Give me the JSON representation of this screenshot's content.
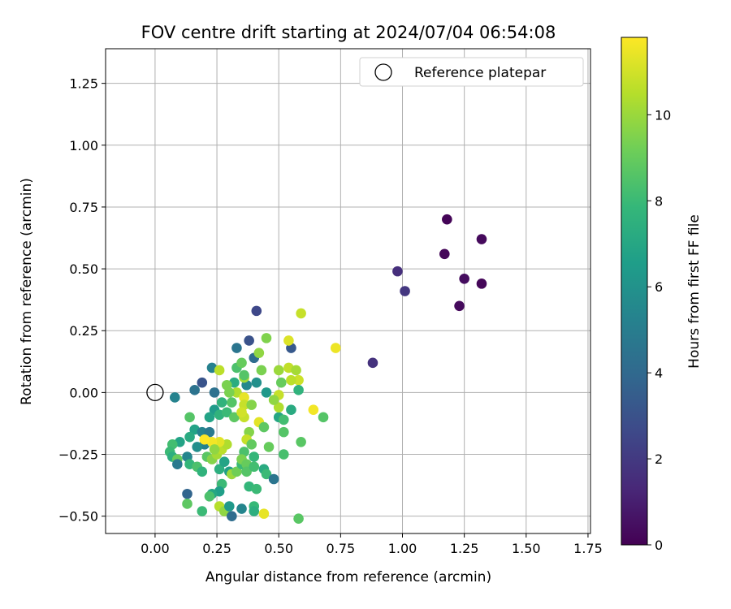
{
  "chart_data": {
    "type": "scatter",
    "title": "FOV centre drift starting at 2024/07/04 06:54:08",
    "xlabel": "Angular distance from reference (arcmin)",
    "ylabel": "Rotation from reference (arcmin)",
    "xlim": [
      -0.2,
      1.76
    ],
    "ylim": [
      -0.57,
      1.39
    ],
    "xticks": [
      0.0,
      0.25,
      0.5,
      0.75,
      1.0,
      1.25,
      1.5,
      1.75
    ],
    "xtick_labels": [
      "0.00",
      "0.25",
      "0.50",
      "0.75",
      "1.00",
      "1.25",
      "1.50",
      "1.75"
    ],
    "yticks": [
      -0.5,
      -0.25,
      0.0,
      0.25,
      0.5,
      0.75,
      1.0,
      1.25
    ],
    "ytick_labels": [
      "−0.50",
      "−0.25",
      "0.00",
      "0.25",
      "0.50",
      "0.75",
      "1.00",
      "1.25"
    ],
    "grid": true,
    "legend": {
      "position": "top-right",
      "label": "Reference platepar"
    },
    "reference_point": {
      "x": 0.0,
      "y": 0.0
    },
    "colorbar": {
      "label": "Hours from first FF file",
      "colormap": "viridis",
      "range": [
        0,
        11.8
      ],
      "ticks": [
        0,
        2,
        4,
        6,
        8,
        10
      ],
      "tick_labels": [
        "0",
        "2",
        "4",
        "6",
        "8",
        "10"
      ]
    },
    "colormap_stops": [
      "#440154",
      "#482878",
      "#3e4989",
      "#31688e",
      "#26828e",
      "#1f9e89",
      "#35b779",
      "#6ece58",
      "#b5de2b",
      "#fde725"
    ],
    "points": [
      [
        1.18,
        0.7,
        0.1
      ],
      [
        1.32,
        0.62,
        0.3
      ],
      [
        1.17,
        0.56,
        0.2
      ],
      [
        1.25,
        0.46,
        0.4
      ],
      [
        1.32,
        0.44,
        0.2
      ],
      [
        1.23,
        0.35,
        0.3
      ],
      [
        0.98,
        0.49,
        1.6
      ],
      [
        1.01,
        0.41,
        1.9
      ],
      [
        0.88,
        0.12,
        1.7
      ],
      [
        0.41,
        0.33,
        2.6
      ],
      [
        0.38,
        0.21,
        3.0
      ],
      [
        0.55,
        0.18,
        3.3
      ],
      [
        0.33,
        0.18,
        4.6
      ],
      [
        0.4,
        0.14,
        4.2
      ],
      [
        0.19,
        0.04,
        3.1
      ],
      [
        0.23,
        0.1,
        5.2
      ],
      [
        0.16,
        0.01,
        4.5
      ],
      [
        0.24,
        0.0,
        4.4
      ],
      [
        0.08,
        -0.02,
        5.3
      ],
      [
        0.37,
        0.03,
        5.5
      ],
      [
        0.41,
        0.04,
        5.9
      ],
      [
        0.45,
        0.0,
        6.3
      ],
      [
        0.32,
        0.04,
        7.3
      ],
      [
        0.29,
        0.03,
        9.4
      ],
      [
        0.26,
        0.09,
        10.6
      ],
      [
        0.33,
        0.1,
        8.4
      ],
      [
        0.36,
        0.06,
        10.2
      ],
      [
        0.43,
        0.09,
        9.4
      ],
      [
        0.5,
        0.09,
        10.0
      ],
      [
        0.54,
        0.1,
        10.7
      ],
      [
        0.57,
        0.09,
        10.2
      ],
      [
        0.58,
        0.05,
        10.9
      ],
      [
        0.55,
        0.05,
        10.6
      ],
      [
        0.51,
        0.04,
        9.0
      ],
      [
        0.58,
        0.01,
        7.6
      ],
      [
        0.45,
        0.22,
        9.5
      ],
      [
        0.42,
        0.16,
        9.8
      ],
      [
        0.35,
        0.12,
        9.0
      ],
      [
        0.36,
        0.07,
        8.6
      ],
      [
        0.59,
        0.32,
        10.8
      ],
      [
        0.54,
        0.21,
        11.2
      ],
      [
        0.73,
        0.18,
        11.5
      ],
      [
        0.64,
        -0.07,
        11.6
      ],
      [
        0.68,
        -0.1,
        8.6
      ],
      [
        0.55,
        -0.07,
        7.2
      ],
      [
        0.5,
        -0.1,
        7.0
      ],
      [
        0.52,
        -0.11,
        8.2
      ],
      [
        0.5,
        -0.06,
        10.4
      ],
      [
        0.5,
        -0.01,
        10.8
      ],
      [
        0.48,
        -0.03,
        9.8
      ],
      [
        0.33,
        0.0,
        10.4
      ],
      [
        0.3,
        0.0,
        9.4
      ],
      [
        0.36,
        -0.02,
        11.4
      ],
      [
        0.36,
        -0.05,
        10.8
      ],
      [
        0.39,
        -0.05,
        9.6
      ],
      [
        0.31,
        -0.04,
        8.6
      ],
      [
        0.27,
        -0.04,
        7.6
      ],
      [
        0.24,
        -0.07,
        6.4
      ],
      [
        0.22,
        -0.1,
        6.8
      ],
      [
        0.26,
        -0.09,
        7.6
      ],
      [
        0.29,
        -0.08,
        8.0
      ],
      [
        0.32,
        -0.1,
        8.8
      ],
      [
        0.36,
        -0.1,
        10.8
      ],
      [
        0.35,
        -0.08,
        11.0
      ],
      [
        0.42,
        -0.12,
        11.3
      ],
      [
        0.44,
        -0.14,
        8.8
      ],
      [
        0.38,
        -0.16,
        9.6
      ],
      [
        0.37,
        -0.19,
        10.8
      ],
      [
        0.39,
        -0.21,
        8.9
      ],
      [
        0.36,
        -0.24,
        8.4
      ],
      [
        0.4,
        -0.26,
        7.8
      ],
      [
        0.46,
        -0.22,
        9.0
      ],
      [
        0.52,
        -0.16,
        8.6
      ],
      [
        0.52,
        -0.25,
        8.3
      ],
      [
        0.59,
        -0.2,
        8.7
      ],
      [
        0.14,
        -0.1,
        8.6
      ],
      [
        0.16,
        -0.15,
        6.8
      ],
      [
        0.19,
        -0.16,
        5.3
      ],
      [
        0.22,
        -0.16,
        4.8
      ],
      [
        0.2,
        -0.21,
        5.2
      ],
      [
        0.17,
        -0.22,
        5.8
      ],
      [
        0.14,
        -0.18,
        7.2
      ],
      [
        0.1,
        -0.2,
        6.8
      ],
      [
        0.07,
        -0.21,
        8.2
      ],
      [
        0.06,
        -0.24,
        8.0
      ],
      [
        0.07,
        -0.26,
        7.4
      ],
      [
        0.09,
        -0.27,
        9.0
      ],
      [
        0.09,
        -0.29,
        4.8
      ],
      [
        0.13,
        -0.26,
        5.4
      ],
      [
        0.14,
        -0.29,
        7.8
      ],
      [
        0.17,
        -0.3,
        8.4
      ],
      [
        0.19,
        -0.32,
        7.6
      ],
      [
        0.21,
        -0.26,
        8.7
      ],
      [
        0.23,
        -0.27,
        9.6
      ],
      [
        0.25,
        -0.25,
        10.2
      ],
      [
        0.27,
        -0.23,
        10.6
      ],
      [
        0.29,
        -0.21,
        10.4
      ],
      [
        0.26,
        -0.2,
        11.3
      ],
      [
        0.23,
        -0.2,
        11.6
      ],
      [
        0.2,
        -0.19,
        11.8
      ],
      [
        0.24,
        -0.23,
        9.8
      ],
      [
        0.26,
        -0.31,
        7.4
      ],
      [
        0.28,
        -0.28,
        6.8
      ],
      [
        0.3,
        -0.32,
        6.6
      ],
      [
        0.31,
        -0.33,
        10.0
      ],
      [
        0.33,
        -0.32,
        9.2
      ],
      [
        0.35,
        -0.29,
        8.0
      ],
      [
        0.35,
        -0.27,
        9.4
      ],
      [
        0.37,
        -0.29,
        9.0
      ],
      [
        0.37,
        -0.32,
        8.6
      ],
      [
        0.4,
        -0.3,
        8.2
      ],
      [
        0.44,
        -0.31,
        7.2
      ],
      [
        0.45,
        -0.33,
        8.0
      ],
      [
        0.48,
        -0.35,
        4.6
      ],
      [
        0.27,
        -0.37,
        8.0
      ],
      [
        0.26,
        -0.4,
        6.6
      ],
      [
        0.23,
        -0.41,
        7.0
      ],
      [
        0.22,
        -0.42,
        8.4
      ],
      [
        0.13,
        -0.41,
        3.8
      ],
      [
        0.13,
        -0.45,
        8.8
      ],
      [
        0.19,
        -0.48,
        8.0
      ],
      [
        0.26,
        -0.46,
        10.5
      ],
      [
        0.28,
        -0.48,
        9.8
      ],
      [
        0.31,
        -0.5,
        4.2
      ],
      [
        0.3,
        -0.46,
        6.3
      ],
      [
        0.35,
        -0.47,
        5.4
      ],
      [
        0.4,
        -0.46,
        7.9
      ],
      [
        0.4,
        -0.48,
        7.4
      ],
      [
        0.44,
        -0.49,
        11.4
      ],
      [
        0.38,
        -0.38,
        7.8
      ],
      [
        0.41,
        -0.39,
        8.0
      ],
      [
        0.58,
        -0.51,
        8.7
      ]
    ]
  }
}
